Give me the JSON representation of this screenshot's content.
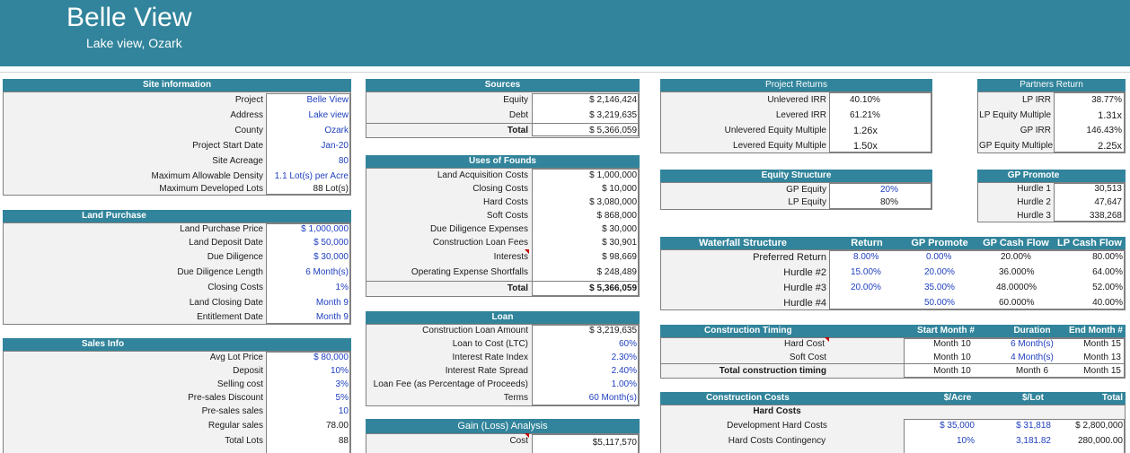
{
  "title": "Belle View",
  "subtitle": "Lake view, Ozark",
  "site": {
    "header": "Site information",
    "rows": [
      {
        "label": "Project",
        "value": "Belle View"
      },
      {
        "label": "Address",
        "value": "Lake view"
      },
      {
        "label": "County",
        "value": "Ozark"
      },
      {
        "label": "Project Start Date",
        "value": "Jan-20"
      },
      {
        "label": "Site Acreage",
        "value": "80"
      },
      {
        "label": "Maximum Allowable Density",
        "value": "1.1 Lot(s) per Acre"
      },
      {
        "label": "Maximum Developed Lots",
        "value": "88 Lot(s)"
      }
    ]
  },
  "land": {
    "header": "Land Purchase",
    "rows": [
      {
        "label": "Land Purchase Price",
        "value": "$ 1,000,000"
      },
      {
        "label": "Land Deposit Date",
        "value": "$ 50,000"
      },
      {
        "label": "Due Diligence",
        "value": "$ 30,000"
      },
      {
        "label": "Due Diligence Length",
        "value": "6 Month(s)"
      },
      {
        "label": "Closing Costs",
        "value": "1%"
      },
      {
        "label": "Land Closing Date",
        "value": "Month 9"
      },
      {
        "label": "Entitlement Date",
        "value": "Month 9"
      }
    ]
  },
  "sales": {
    "header": "Sales Info",
    "rows": [
      {
        "label": "Avg Lot Price",
        "value": "$ 80,000"
      },
      {
        "label": "Deposit",
        "value": "10%"
      },
      {
        "label": "Selling cost",
        "value": "3%"
      },
      {
        "label": "Pre-sales Discount",
        "value": "5%"
      },
      {
        "label": "Pre-sales sales",
        "value": "10"
      },
      {
        "label": "Regular sales",
        "value": "78.00"
      },
      {
        "label": "Total Lots",
        "value": "88"
      }
    ]
  },
  "sources": {
    "header": "Sources",
    "rows": [
      {
        "label": "Equity",
        "value": "$ 2,146,424"
      },
      {
        "label": "Debt",
        "value": "$ 3,219,635"
      },
      {
        "label": "Total",
        "value": "$ 5,366,059"
      }
    ]
  },
  "uses": {
    "header": "Uses of Founds",
    "rows": [
      {
        "label": "Land Acquisition Costs",
        "value": "$ 1,000,000"
      },
      {
        "label": "Closing Costs",
        "value": "$ 10,000"
      },
      {
        "label": "Hard Costs",
        "value": "$ 3,080,000"
      },
      {
        "label": "Soft Costs",
        "value": "$ 868,000"
      },
      {
        "label": "Due Diligence Expenses",
        "value": "$ 30,000"
      },
      {
        "label": "Construction Loan Fees",
        "value": "$ 30,901"
      },
      {
        "label": "Interests",
        "value": "$ 98,669"
      },
      {
        "label": "Operating Expense Shortfalls",
        "value": "$ 248,489"
      },
      {
        "label": "Total",
        "value": "$ 5,366,059"
      }
    ]
  },
  "loan": {
    "header": "Loan",
    "rows": [
      {
        "label": "Construction Loan Amount",
        "value": "$ 3,219,635"
      },
      {
        "label": "Loan to Cost (LTC)",
        "value": "60%"
      },
      {
        "label": "Interest Rate Index",
        "value": "2.30%"
      },
      {
        "label": "Interest Rate Spread",
        "value": "2.40%"
      },
      {
        "label": "Loan Fee (as Percentage of Proceeds)",
        "value": "1.00%"
      },
      {
        "label": "Terms",
        "value": "60 Month(s)"
      }
    ]
  },
  "gain": {
    "header": "Gain (Loss) Analysis",
    "rows": [
      {
        "label": "Cost",
        "value": "$5,117,570"
      }
    ]
  },
  "returns": {
    "header": "Project Returns",
    "rows": [
      {
        "label": "Unlevered IRR",
        "value": "40.10%"
      },
      {
        "label": "Levered IRR",
        "value": "61.21%"
      },
      {
        "label": "Unlevered Equity Multiple",
        "value": "1.26x"
      },
      {
        "label": "Levered Equity Multiple",
        "value": "1.50x"
      }
    ]
  },
  "equity": {
    "header": "Equity Structure",
    "rows": [
      {
        "label": "GP Equity",
        "value": "20%"
      },
      {
        "label": "LP Equity",
        "value": "80%"
      }
    ]
  },
  "waterfall": {
    "header": "Waterfall Structure",
    "cols": [
      "Return",
      "GP Promote",
      "GP Cash Flow",
      "LP Cash Flow"
    ],
    "rows": [
      {
        "label": "Preferred Return",
        "return": "8.00%",
        "gp_promote": "0.00%",
        "gp_cf": "20.00%",
        "lp_cf": "80.00%"
      },
      {
        "label": "Hurdle #2",
        "return": "15.00%",
        "gp_promote": "20.00%",
        "gp_cf": "36.000%",
        "lp_cf": "64.00%"
      },
      {
        "label": "Hurdle #3",
        "return": "20.00%",
        "gp_promote": "35.00%",
        "gp_cf": "48.0000%",
        "lp_cf": "52.00%"
      },
      {
        "label": "Hurdle #4",
        "return": "",
        "gp_promote": "50.00%",
        "gp_cf": "60.000%",
        "lp_cf": "40.00%"
      }
    ]
  },
  "timing": {
    "header": "Construction Timing",
    "cols": [
      "Start Month #",
      "Duration",
      "End Month #"
    ],
    "rows": [
      {
        "label": "Hard Cost",
        "start": "Month 10",
        "duration": "6 Month(s)",
        "end": "Month 15"
      },
      {
        "label": "Soft Cost",
        "start": "Month 10",
        "duration": "4 Month(s)",
        "end": "Month 13"
      },
      {
        "label": "Total construction timing",
        "start": "Month 10",
        "duration": "Month 6",
        "end": "Month 15"
      }
    ]
  },
  "costs": {
    "header": "Construction Costs",
    "cols": [
      "$/Acre",
      "$/Lot",
      "Total"
    ],
    "section": "Hard Costs",
    "rows": [
      {
        "label": "Development Hard Costs",
        "acre": "$ 35,000",
        "lot": "$ 31,818",
        "total": "$ 2,800,000"
      },
      {
        "label": "Hard Costs Contingency",
        "acre": "10%",
        "lot": "3,181.82",
        "total": "280,000.00"
      }
    ]
  },
  "partners": {
    "header": "Partners Return",
    "rows": [
      {
        "label": "LP IRR",
        "value": "38.77%"
      },
      {
        "label": "LP Equity Multiple",
        "value": "1.31x"
      },
      {
        "label": "GP IRR",
        "value": "146.43%"
      },
      {
        "label": "GP Equity Multiple",
        "value": "2.25x"
      }
    ]
  },
  "promote": {
    "header": "GP Promote",
    "rows": [
      {
        "label": "Hurdle 1",
        "value": "30,513"
      },
      {
        "label": "Hurdle 2",
        "value": "47,647"
      },
      {
        "label": "Hurdle 3",
        "value": "338,268"
      }
    ]
  },
  "colors": {
    "accent": "#31849b",
    "input_blue": "#1f3fbf",
    "panel": "#f2f2f2"
  }
}
